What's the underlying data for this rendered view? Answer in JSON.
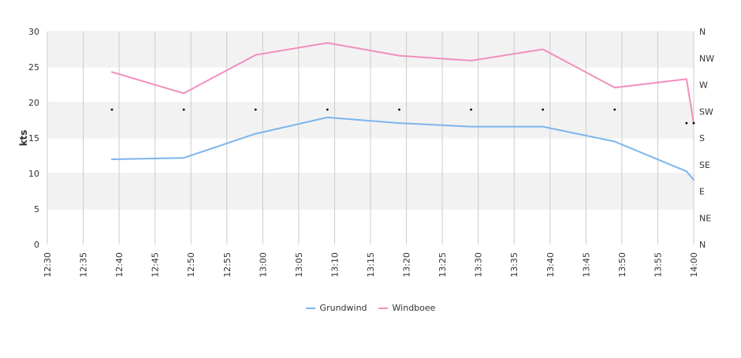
{
  "chart_data": {
    "type": "line",
    "ylabel": "kts",
    "ylim": [
      0,
      30
    ],
    "y_ticks": [
      "0",
      "5",
      "10",
      "15",
      "20",
      "25",
      "30"
    ],
    "x_ticks": [
      "12:30",
      "12:35",
      "12:40",
      "12:45",
      "12:50",
      "12:55",
      "13:00",
      "13:05",
      "13:10",
      "13:15",
      "13:20",
      "13:25",
      "13:30",
      "13:35",
      "13:40",
      "13:45",
      "13:50",
      "13:55",
      "14:00"
    ],
    "xlim": [
      "12:30",
      "14:00"
    ],
    "y2_ticks": [
      "N",
      "NE",
      "E",
      "SE",
      "S",
      "SW",
      "W",
      "NW",
      "N"
    ],
    "grid": true,
    "legend_position": "bottom",
    "colors": {
      "band": "#f2f2f2",
      "gridline": "#cccccc",
      "grundwind": "#7cb5ec",
      "windboee": "#f08fbd",
      "direction_marker": "#000000"
    },
    "series": [
      {
        "name": "Grundwind",
        "color": "#7cb5ec",
        "points": [
          {
            "x": "12:39",
            "y": 12.0
          },
          {
            "x": "12:49",
            "y": 12.2
          },
          {
            "x": "12:59",
            "y": 15.6
          },
          {
            "x": "13:09",
            "y": 17.9
          },
          {
            "x": "13:19",
            "y": 17.1
          },
          {
            "x": "13:29",
            "y": 16.6
          },
          {
            "x": "13:39",
            "y": 16.6
          },
          {
            "x": "13:49",
            "y": 14.5
          },
          {
            "x": "13:59",
            "y": 10.3
          },
          {
            "x": "14:00",
            "y": 9.1
          }
        ]
      },
      {
        "name": "Windboee",
        "color": "#f08fbd",
        "points": [
          {
            "x": "12:39",
            "y": 24.3
          },
          {
            "x": "12:49",
            "y": 21.3
          },
          {
            "x": "12:59",
            "y": 26.7
          },
          {
            "x": "13:09",
            "y": 28.4
          },
          {
            "x": "13:19",
            "y": 26.6
          },
          {
            "x": "13:29",
            "y": 25.9
          },
          {
            "x": "13:39",
            "y": 27.5
          },
          {
            "x": "13:49",
            "y": 22.1
          },
          {
            "x": "13:59",
            "y": 23.3
          },
          {
            "x": "14:00",
            "y": 17.0
          }
        ]
      }
    ],
    "direction_markers": [
      {
        "x": "12:39",
        "y": 19.0
      },
      {
        "x": "12:49",
        "y": 19.0
      },
      {
        "x": "12:59",
        "y": 19.0
      },
      {
        "x": "13:09",
        "y": 19.0
      },
      {
        "x": "13:19",
        "y": 19.0
      },
      {
        "x": "13:29",
        "y": 19.0
      },
      {
        "x": "13:39",
        "y": 19.0
      },
      {
        "x": "13:49",
        "y": 19.0
      },
      {
        "x": "13:59",
        "y": 17.1
      },
      {
        "x": "14:00",
        "y": 17.1
      }
    ]
  }
}
